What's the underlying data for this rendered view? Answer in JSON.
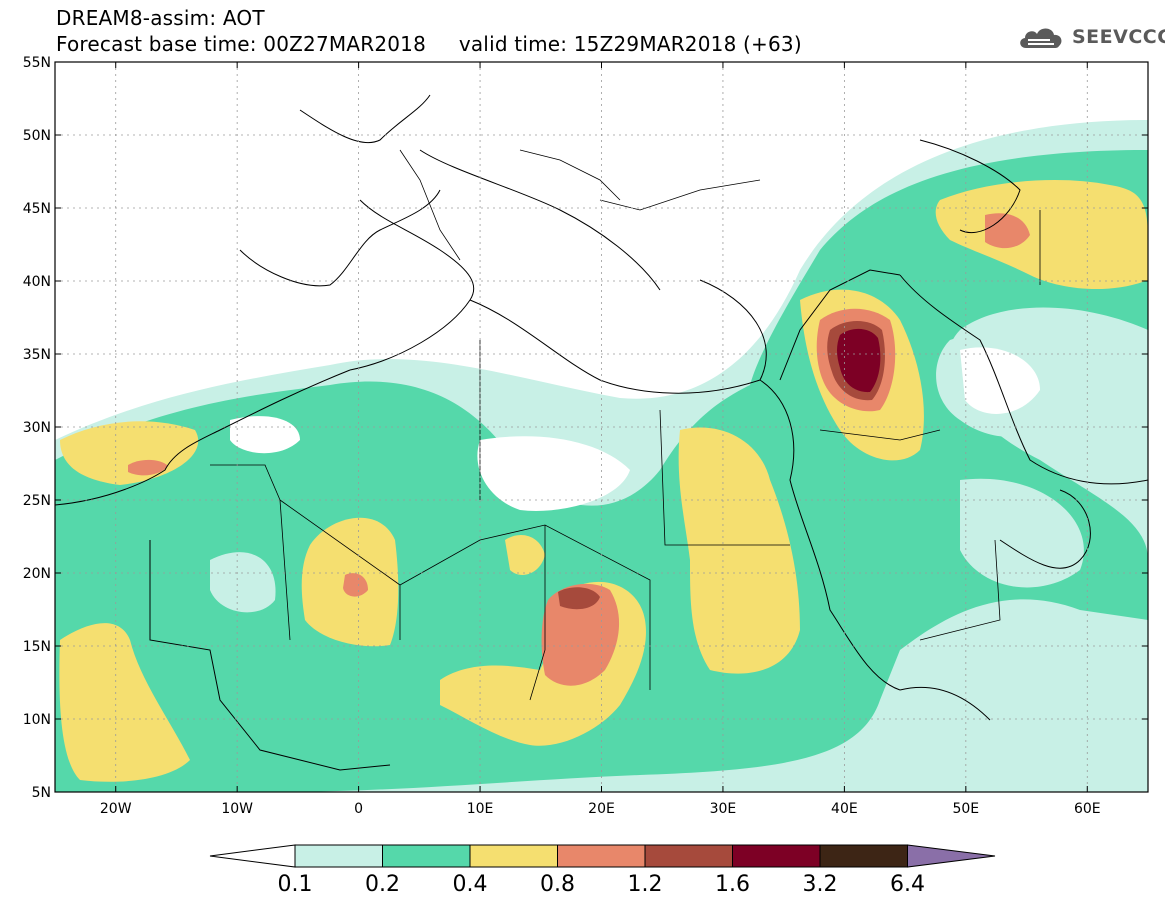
{
  "title": {
    "line1": "DREAM8-assim: AOT",
    "line2": "Forecast base time: 00Z27MAR2018     valid time: 15Z29MAR2018 (+63)"
  },
  "logo": {
    "text": "SEEVCCC",
    "icon": "cloud-icon",
    "color": "#555555"
  },
  "map": {
    "lon_range": [
      -25,
      65
    ],
    "lat_range": [
      5,
      55
    ],
    "lat_labels": [
      "55N",
      "50N",
      "45N",
      "40N",
      "35N",
      "30N",
      "25N",
      "20N",
      "15N",
      "10N",
      "5N"
    ],
    "lon_labels": [
      "20W",
      "10W",
      "0",
      "10E",
      "20E",
      "30E",
      "40E",
      "50E",
      "60E"
    ],
    "grid": "dotted"
  },
  "colorbar": {
    "labels": [
      "0.1",
      "0.2",
      "0.4",
      "0.8",
      "1.2",
      "1.6",
      "3.2",
      "6.4"
    ],
    "colors": [
      "#ffffff",
      "#c8f0e6",
      "#55d8aa",
      "#f5df70",
      "#e8876a",
      "#a64a3c",
      "#7d0025",
      "#3d2515",
      "#8a6fa8"
    ]
  }
}
